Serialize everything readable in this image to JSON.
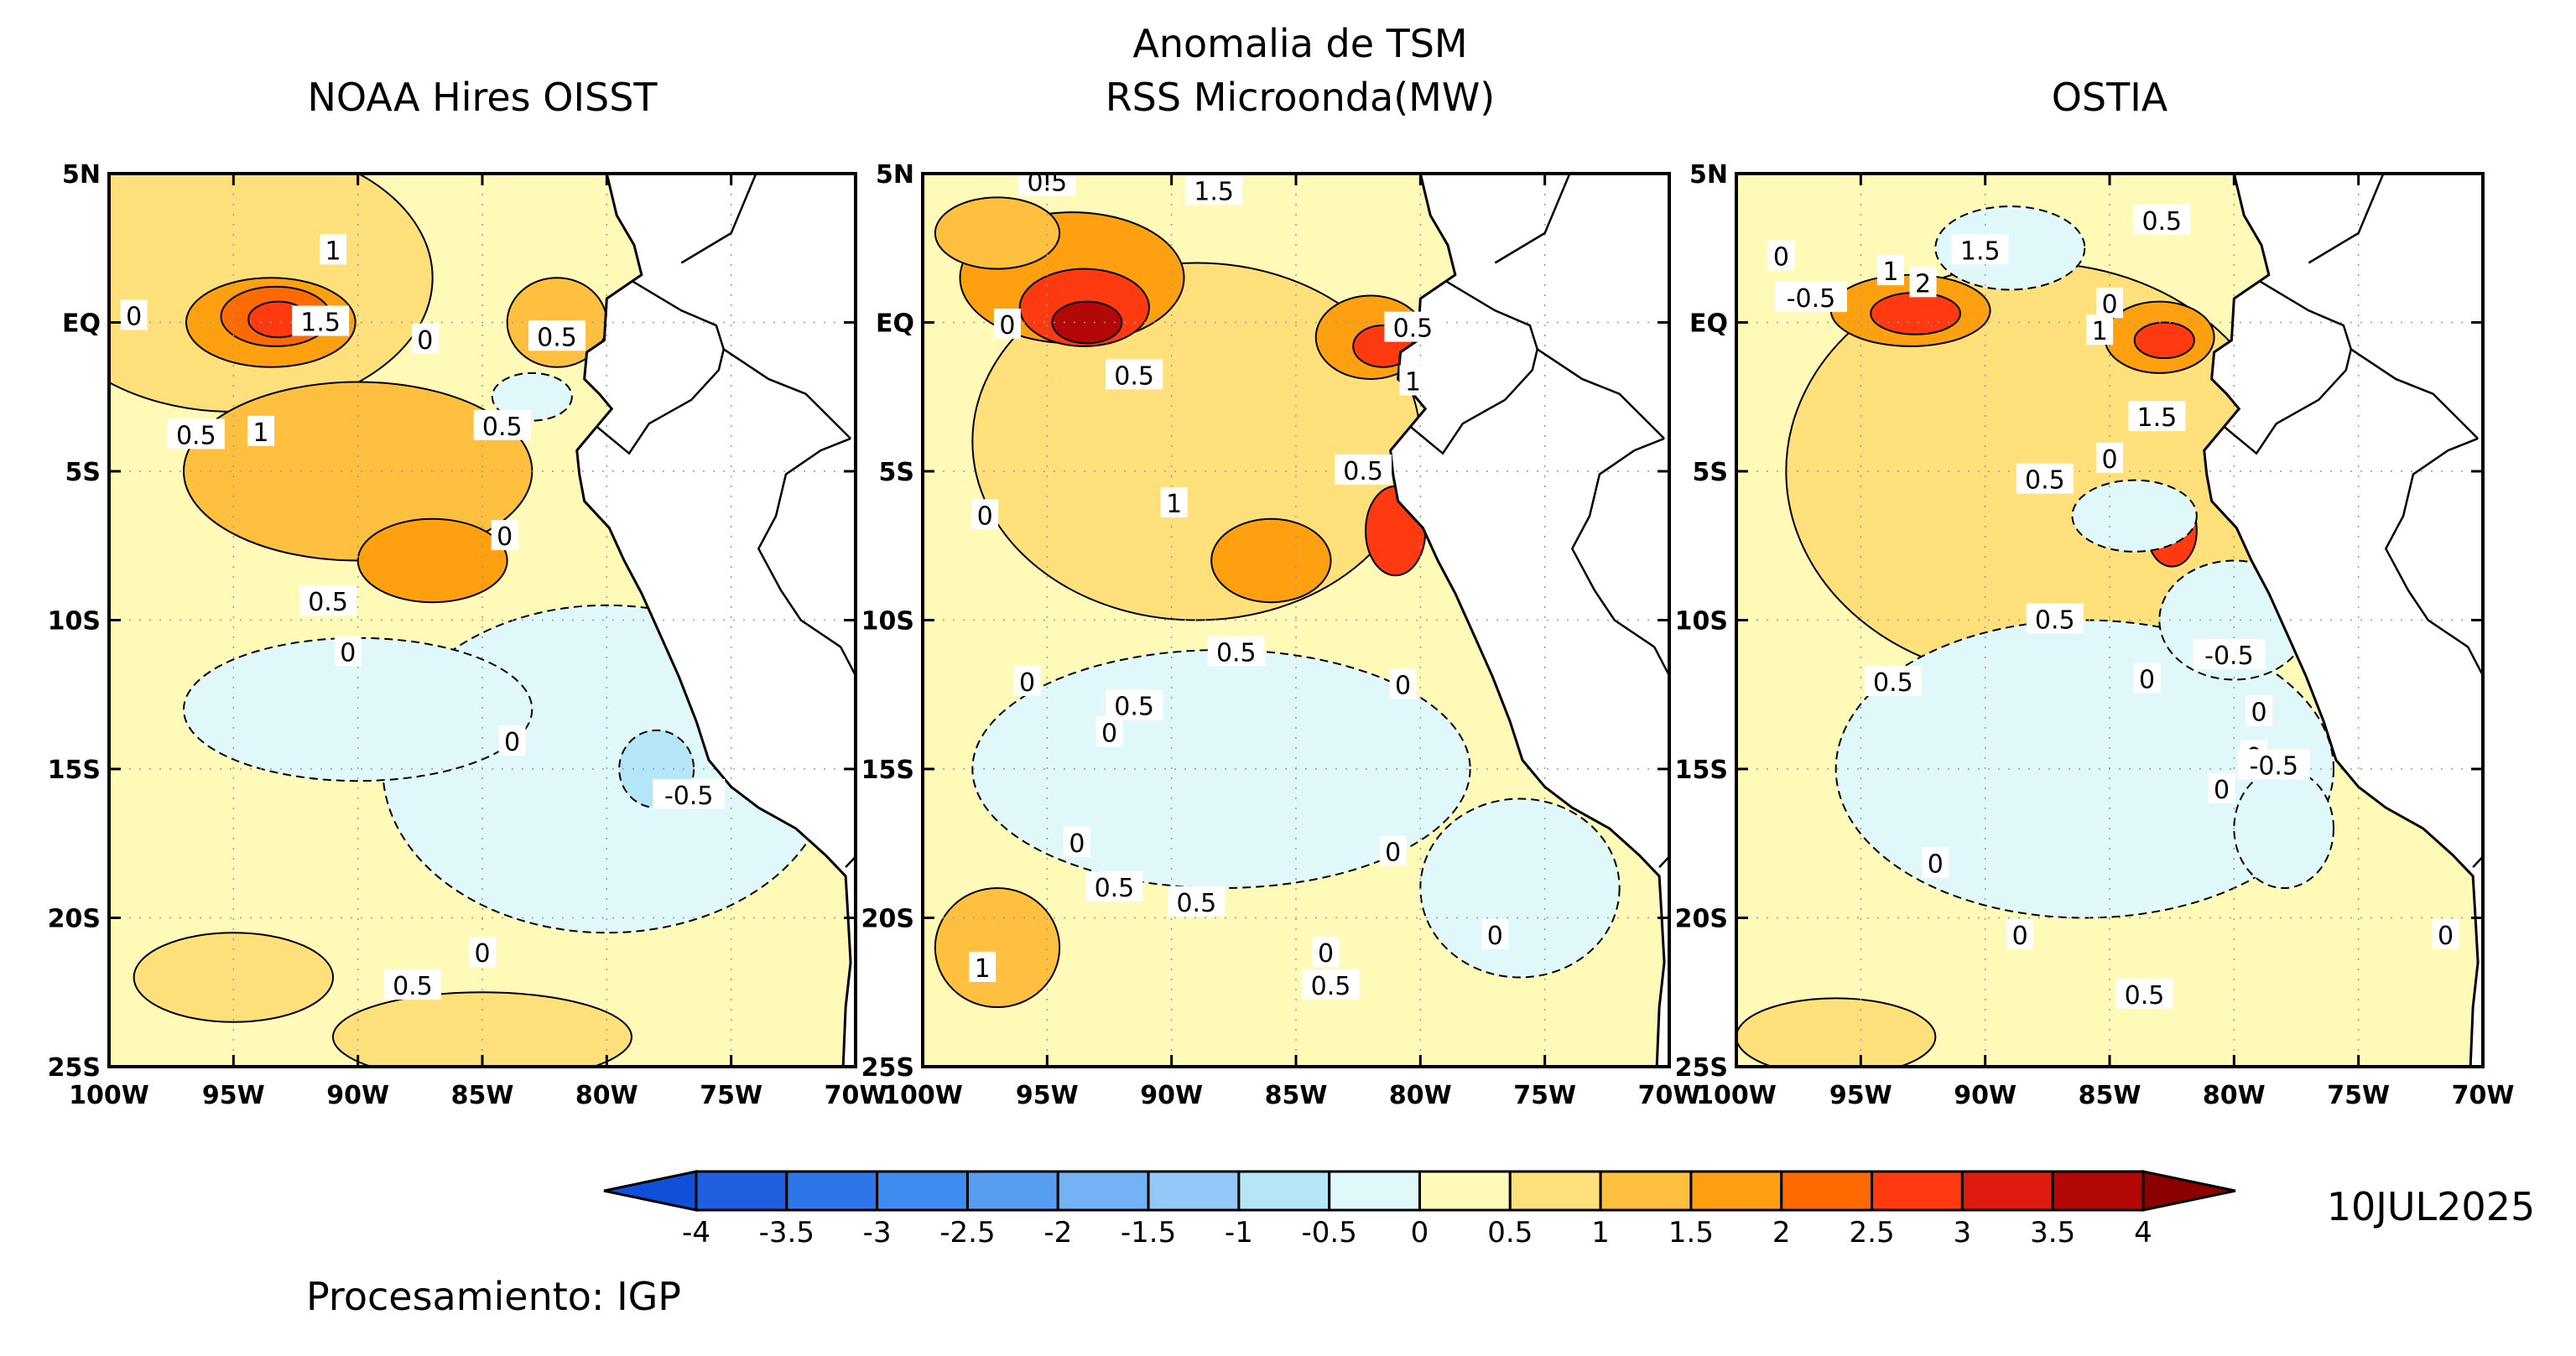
{
  "main_title": {
    "line1": "Anomalia de TSM",
    "line2": "RSS Microonda(MW)"
  },
  "panels": [
    {
      "title": "NOAA Hires OISST",
      "contour_labels": [
        "1",
        "0",
        "1.5",
        "0.5",
        "0",
        "0.5",
        "1",
        "0.5",
        "0",
        "0.5",
        "0",
        "0",
        "-0.5",
        "0",
        "0.5"
      ]
    },
    {
      "title": "",
      "contour_labels": [
        "0.5",
        "1.5",
        "0",
        "0.5",
        "0.5",
        "1",
        "0.5",
        "1",
        "0",
        "0.5",
        "0.5",
        "0",
        "0",
        "0.5",
        "0",
        "0",
        "0.5",
        "1",
        "0",
        "0.5",
        "0",
        "0"
      ]
    },
    {
      "title": "OSTIA",
      "contour_labels": [
        "0.5",
        "1.5",
        "0",
        "-0.5",
        "1",
        "2",
        "0",
        "1",
        "1.5",
        "0",
        "0.5",
        "0.5",
        "-0.5",
        "0",
        "0",
        "0.5",
        "0",
        "-0.5",
        "0",
        "0",
        "0",
        "0",
        "0.5"
      ]
    }
  ],
  "axes": {
    "lat_ticks": [
      "5N",
      "EQ",
      "5S",
      "10S",
      "15S",
      "20S",
      "25S"
    ],
    "lon_ticks": [
      "100W",
      "95W",
      "90W",
      "85W",
      "80W",
      "75W",
      "70W"
    ]
  },
  "colorbar": {
    "labels": [
      "-4",
      "-3.5",
      "-3",
      "-2.5",
      "-2",
      "-1.5",
      "-1",
      "-0.5",
      "0",
      "0.5",
      "1",
      "1.5",
      "2",
      "2.5",
      "3",
      "3.5",
      "4"
    ],
    "colors": [
      "#1f5fe0",
      "#2f75ea",
      "#3f8cf0",
      "#569ef2",
      "#74b2f6",
      "#94c8f8",
      "#b4e6f8",
      "#e0f8fa",
      "#fffab8",
      "#ffe07a",
      "#ffc040",
      "#ffa010",
      "#ff6a00",
      "#ff3a10",
      "#e01c10",
      "#b40808"
    ],
    "under_color": "#1050d8",
    "over_color": "#8c0000"
  },
  "date": "10JUL2025",
  "footer": "Procesamiento: IGP"
}
